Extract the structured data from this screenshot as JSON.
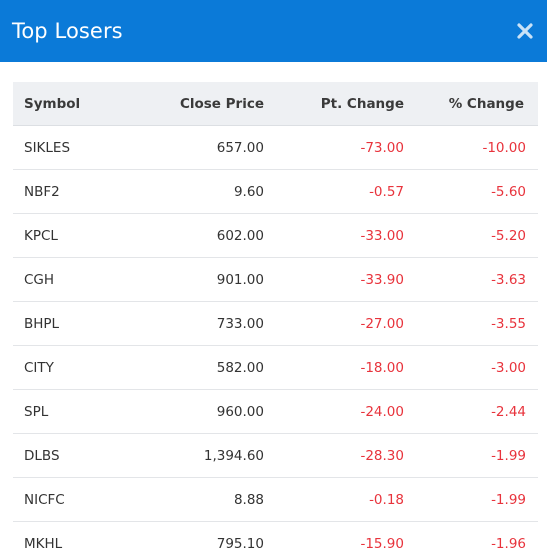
{
  "modal": {
    "title": "Top Losers",
    "close_icon": "close-x-icon"
  },
  "colors": {
    "header_bg": "#0b7ad8",
    "negative": "#e8333c",
    "table_header_bg": "#eef0f3"
  },
  "table": {
    "headers": {
      "symbol": "Symbol",
      "close_price": "Close Price",
      "pt_change": "Pt. Change",
      "pct_change": "% Change"
    },
    "rows": [
      {
        "symbol": "SIKLES",
        "close_price": "657.00",
        "pt_change": "-73.00",
        "pct_change": "-10.00"
      },
      {
        "symbol": "NBF2",
        "close_price": "9.60",
        "pt_change": "-0.57",
        "pct_change": "-5.60"
      },
      {
        "symbol": "KPCL",
        "close_price": "602.00",
        "pt_change": "-33.00",
        "pct_change": "-5.20"
      },
      {
        "symbol": "CGH",
        "close_price": "901.00",
        "pt_change": "-33.90",
        "pct_change": "-3.63"
      },
      {
        "symbol": "BHPL",
        "close_price": "733.00",
        "pt_change": "-27.00",
        "pct_change": "-3.55"
      },
      {
        "symbol": "CITY",
        "close_price": "582.00",
        "pt_change": "-18.00",
        "pct_change": "-3.00"
      },
      {
        "symbol": "SPL",
        "close_price": "960.00",
        "pt_change": "-24.00",
        "pct_change": "-2.44"
      },
      {
        "symbol": "DLBS",
        "close_price": "1,394.60",
        "pt_change": "-28.30",
        "pct_change": "-1.99"
      },
      {
        "symbol": "NICFC",
        "close_price": "8.88",
        "pt_change": "-0.18",
        "pct_change": "-1.99"
      },
      {
        "symbol": "MKHL",
        "close_price": "795.10",
        "pt_change": "-15.90",
        "pct_change": "-1.96"
      }
    ]
  }
}
